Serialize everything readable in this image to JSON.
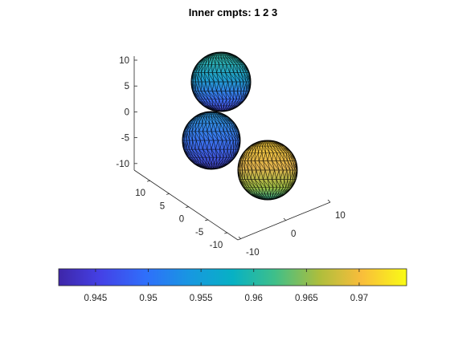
{
  "chart_data": {
    "type": "3d-surface",
    "title": "Inner cmpts: 1  2  3",
    "z_ticks": [
      "10",
      "5",
      "0",
      "-5",
      "-10"
    ],
    "y_ticks": [
      "10",
      "5",
      "0",
      "-5",
      "-10"
    ],
    "x_ticks": [
      "10",
      "0",
      "-10"
    ],
    "compartments": [
      {
        "id": "1",
        "value_range": [
          0.944,
          0.958
        ]
      },
      {
        "id": "2",
        "value_range": [
          0.942,
          0.956
        ]
      },
      {
        "id": "3",
        "value_range": [
          0.962,
          0.974
        ]
      }
    ],
    "colorbar": {
      "orientation": "horizontal",
      "location": "bottom",
      "range": [
        0.9415,
        0.9745
      ],
      "ticks": [
        0.945,
        0.95,
        0.955,
        0.96,
        0.965,
        0.97
      ],
      "tick_labels": [
        "0.945",
        "0.95",
        "0.955",
        "0.96",
        "0.965",
        "0.97"
      ],
      "colormap": "parula"
    },
    "grid": false
  }
}
